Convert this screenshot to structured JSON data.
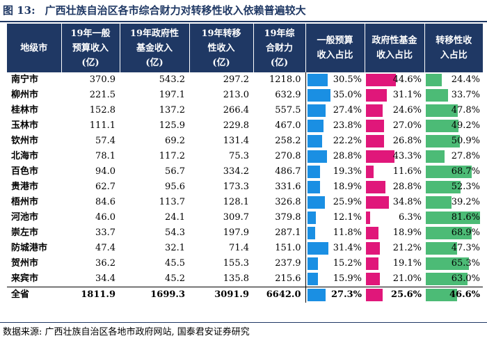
{
  "figure": {
    "label": "图 13:",
    "title": "广西壮族自治区各市综合财力对转移性收入依赖普遍较大"
  },
  "headers": [
    [
      "地级市"
    ],
    [
      "19年一般",
      "预算收入",
      "(亿)"
    ],
    [
      "19年政府性",
      "基金收入",
      "(亿)"
    ],
    [
      "19年转移",
      "性收入",
      "(亿)"
    ],
    [
      "19年综",
      "合财力",
      "(亿)"
    ],
    [
      "一般预算",
      "收入占比"
    ],
    [
      "政府性基金",
      "收入占比"
    ],
    [
      "转移性收",
      "入占比"
    ]
  ],
  "colors": {
    "header_bg": "#1f3864",
    "bar_general": "#1a8fe3",
    "bar_fund": "#e0177a",
    "bar_transfer": "#4cbb76"
  },
  "rows": [
    {
      "city": "南宁市",
      "general": "370.9",
      "fund": "543.2",
      "transfer": "297.2",
      "total": "1218.0",
      "p_general": "30.5%",
      "p_fund": "44.6%",
      "p_transfer": "24.4%"
    },
    {
      "city": "柳州市",
      "general": "221.5",
      "fund": "197.1",
      "transfer": "213.0",
      "total": "632.9",
      "p_general": "35.0%",
      "p_fund": "31.1%",
      "p_transfer": "33.7%"
    },
    {
      "city": "桂林市",
      "general": "152.8",
      "fund": "137.2",
      "transfer": "266.4",
      "total": "557.5",
      "p_general": "27.4%",
      "p_fund": "24.6%",
      "p_transfer": "47.8%"
    },
    {
      "city": "玉林市",
      "general": "111.1",
      "fund": "125.9",
      "transfer": "229.8",
      "total": "467.0",
      "p_general": "23.8%",
      "p_fund": "27.0%",
      "p_transfer": "49.2%"
    },
    {
      "city": "钦州市",
      "general": "57.4",
      "fund": "69.2",
      "transfer": "131.4",
      "total": "258.2",
      "p_general": "22.2%",
      "p_fund": "26.8%",
      "p_transfer": "50.9%"
    },
    {
      "city": "北海市",
      "general": "78.1",
      "fund": "117.2",
      "transfer": "75.3",
      "total": "270.8",
      "p_general": "28.8%",
      "p_fund": "43.3%",
      "p_transfer": "27.8%"
    },
    {
      "city": "百色市",
      "general": "94.0",
      "fund": "56.7",
      "transfer": "334.2",
      "total": "486.7",
      "p_general": "19.3%",
      "p_fund": "11.6%",
      "p_transfer": "68.7%"
    },
    {
      "city": "贵港市",
      "general": "62.7",
      "fund": "95.6",
      "transfer": "173.3",
      "total": "331.6",
      "p_general": "18.9%",
      "p_fund": "28.8%",
      "p_transfer": "52.3%"
    },
    {
      "city": "梧州市",
      "general": "84.6",
      "fund": "113.7",
      "transfer": "128.1",
      "total": "326.8",
      "p_general": "25.9%",
      "p_fund": "34.8%",
      "p_transfer": "39.2%"
    },
    {
      "city": "河池市",
      "general": "46.0",
      "fund": "24.1",
      "transfer": "309.7",
      "total": "379.8",
      "p_general": "12.1%",
      "p_fund": "6.3%",
      "p_transfer": "81.6%"
    },
    {
      "city": "崇左市",
      "general": "33.7",
      "fund": "54.3",
      "transfer": "197.9",
      "total": "287.1",
      "p_general": "11.8%",
      "p_fund": "18.9%",
      "p_transfer": "68.9%"
    },
    {
      "city": "防城港市",
      "general": "47.4",
      "fund": "32.1",
      "transfer": "71.4",
      "total": "151.0",
      "p_general": "31.4%",
      "p_fund": "21.2%",
      "p_transfer": "47.3%"
    },
    {
      "city": "贺州市",
      "general": "36.2",
      "fund": "45.5",
      "transfer": "155.3",
      "total": "237.9",
      "p_general": "15.2%",
      "p_fund": "19.1%",
      "p_transfer": "65.3%"
    },
    {
      "city": "来宾市",
      "general": "34.4",
      "fund": "45.2",
      "transfer": "135.8",
      "total": "215.6",
      "p_general": "15.9%",
      "p_fund": "21.0%",
      "p_transfer": "63.0%"
    }
  ],
  "total_row": {
    "city": "全省",
    "general": "1811.9",
    "fund": "1699.3",
    "transfer": "3091.9",
    "total": "6642.0",
    "p_general": "27.3%",
    "p_fund": "25.6%",
    "p_transfer": "46.6%"
  },
  "bar_scale_max": 81.6,
  "source": "数据来源: 广西壮族自治区各地市政府网站, 国泰君安证券研究"
}
